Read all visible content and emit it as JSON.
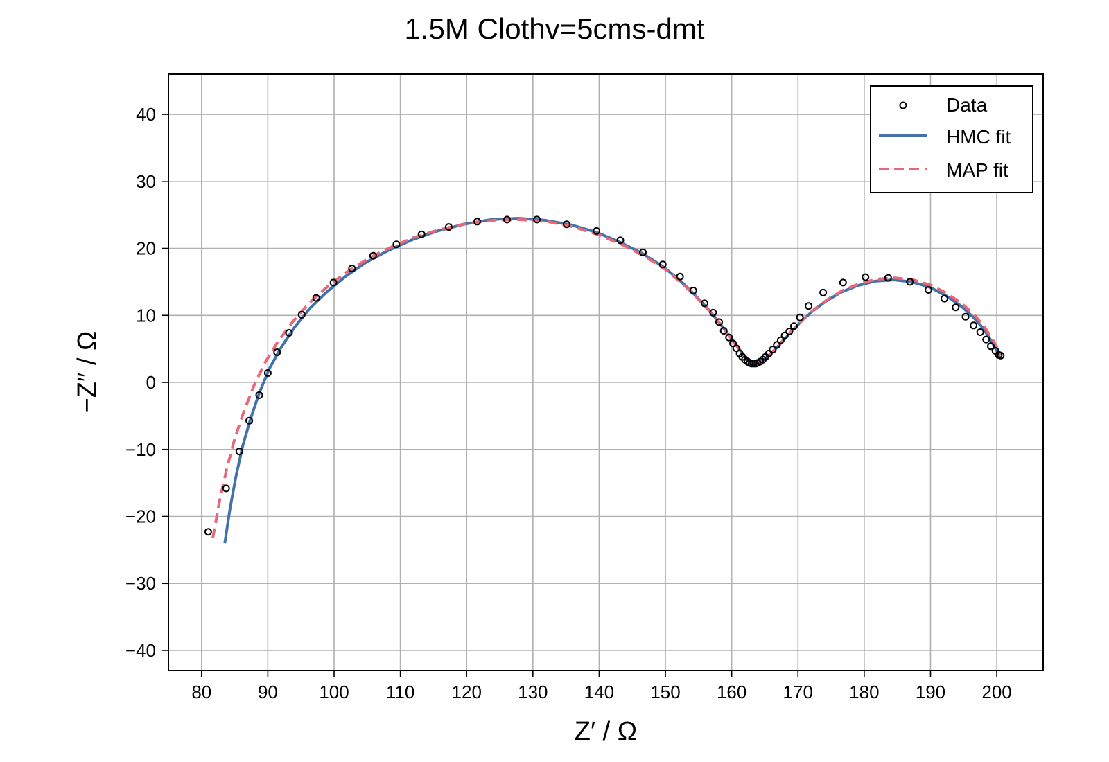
{
  "chart_data": {
    "type": "scatter",
    "title": "1.5M Clothv=5cms-dmt",
    "xlabel": "Z′ / Ω",
    "ylabel": "−Z″ / Ω",
    "xlim": [
      75,
      207
    ],
    "ylim": [
      -43,
      46
    ],
    "xticks": [
      80,
      90,
      100,
      110,
      120,
      130,
      140,
      150,
      160,
      170,
      180,
      190,
      200
    ],
    "yticks": [
      -40,
      -30,
      -20,
      -10,
      0,
      10,
      20,
      30,
      40
    ],
    "xtick_labels": [
      "80",
      "90",
      "100",
      "110",
      "120",
      "130",
      "140",
      "150",
      "160",
      "170",
      "180",
      "190",
      "200"
    ],
    "ytick_labels": [
      "−40",
      "−30",
      "−20",
      "−10",
      "0",
      "10",
      "20",
      "30",
      "40"
    ],
    "grid": true,
    "legend_position": "top-right",
    "series": [
      {
        "name": "Data",
        "kind": "scatter",
        "color": "#000000",
        "x": [
          81.0,
          83.7,
          85.7,
          87.2,
          88.7,
          90.0,
          91.4,
          93.2,
          95.1,
          97.3,
          99.9,
          102.7,
          105.9,
          109.4,
          113.2,
          117.3,
          121.6,
          126.1,
          130.6,
          135.1,
          139.6,
          143.2,
          146.6,
          149.6,
          152.2,
          154.2,
          155.9,
          157.2,
          158.1,
          158.8,
          159.6,
          160.2,
          160.7,
          161.2,
          161.6,
          162.0,
          162.4,
          162.7,
          163.0,
          163.3,
          163.6,
          163.9,
          164.3,
          164.7,
          165.1,
          165.6,
          166.2,
          166.8,
          167.4,
          168.0,
          168.7,
          169.4,
          170.3,
          171.6,
          173.8,
          176.8,
          180.2,
          183.6,
          186.9,
          189.7,
          192.1,
          193.8,
          195.3,
          196.5,
          197.5,
          198.4,
          199.1,
          199.8,
          200.3,
          200.6
        ],
        "y": [
          -22.3,
          -15.8,
          -10.3,
          -5.7,
          -1.9,
          1.4,
          4.5,
          7.4,
          10.1,
          12.6,
          14.9,
          17.0,
          18.9,
          20.6,
          22.1,
          23.2,
          24.0,
          24.3,
          24.3,
          23.6,
          22.6,
          21.2,
          19.4,
          17.6,
          15.8,
          13.7,
          11.8,
          10.4,
          9.0,
          7.7,
          6.7,
          5.8,
          5.1,
          4.3,
          3.8,
          3.4,
          3.1,
          2.9,
          2.8,
          2.8,
          2.8,
          2.9,
          3.1,
          3.4,
          3.8,
          4.3,
          4.9,
          5.6,
          6.3,
          7.0,
          7.6,
          8.4,
          9.7,
          11.4,
          13.4,
          14.9,
          15.7,
          15.6,
          15.0,
          13.8,
          12.5,
          11.2,
          9.8,
          8.5,
          7.5,
          6.4,
          5.4,
          4.7,
          4.1,
          4.0
        ]
      },
      {
        "name": "HMC fit",
        "kind": "line",
        "color": "#4472a8",
        "x": [
          83.5,
          84.3,
          85.2,
          86.2,
          87.4,
          88.7,
          90.2,
          92.0,
          94.0,
          96.3,
          98.9,
          101.7,
          104.8,
          108.2,
          111.8,
          115.6,
          119.6,
          123.7,
          127.8,
          131.8,
          135.8,
          139.6,
          143.2,
          146.6,
          149.6,
          152.2,
          154.4,
          156.3,
          157.9,
          159.3,
          160.5,
          161.5,
          162.3,
          163.0,
          163.6,
          164.3,
          165.1,
          166.0,
          167.0,
          168.1,
          169.3,
          170.7,
          172.3,
          174.2,
          176.4,
          178.9,
          181.6,
          184.4,
          187.2,
          189.9,
          192.4,
          194.6,
          196.5,
          198.0,
          199.1,
          199.9,
          200.4
        ],
        "y": [
          -24.0,
          -18.8,
          -14.0,
          -9.5,
          -5.4,
          -1.6,
          2.0,
          5.2,
          8.2,
          11.0,
          13.5,
          15.8,
          17.9,
          19.7,
          21.3,
          22.6,
          23.6,
          24.3,
          24.5,
          24.2,
          23.5,
          22.4,
          20.9,
          19.2,
          17.3,
          15.2,
          13.1,
          11.1,
          9.2,
          7.4,
          5.8,
          4.5,
          3.5,
          2.9,
          2.8,
          3.0,
          3.6,
          4.4,
          5.4,
          6.6,
          7.9,
          9.3,
          10.7,
          12.1,
          13.4,
          14.4,
          15.1,
          15.3,
          15.0,
          14.2,
          12.9,
          11.4,
          9.7,
          8.0,
          6.3,
          4.9,
          3.8
        ]
      },
      {
        "name": "MAP fit",
        "kind": "dashed-line",
        "color": "#e8687a",
        "x": [
          81.7,
          82.7,
          83.8,
          85.0,
          86.4,
          87.9,
          89.6,
          91.6,
          93.8,
          96.2,
          98.9,
          101.8,
          105.0,
          108.4,
          112.0,
          115.9,
          119.9,
          124.0,
          128.1,
          132.2,
          136.2,
          140.0,
          143.6,
          146.9,
          149.9,
          152.5,
          154.7,
          156.6,
          158.2,
          159.6,
          160.7,
          161.7,
          162.5,
          163.2,
          163.8,
          164.5,
          165.3,
          166.2,
          167.2,
          168.3,
          169.6,
          171.0,
          172.6,
          174.5,
          176.7,
          179.2,
          181.8,
          184.6,
          187.4,
          190.1,
          192.6,
          194.8,
          196.7,
          198.2,
          199.3,
          200.1,
          200.5
        ],
        "y": [
          -23.2,
          -17.8,
          -12.9,
          -8.4,
          -4.3,
          -0.5,
          3.0,
          6.2,
          9.1,
          11.8,
          14.2,
          16.4,
          18.4,
          20.1,
          21.6,
          22.8,
          23.7,
          24.2,
          24.3,
          24.0,
          23.2,
          22.0,
          20.5,
          18.8,
          16.9,
          14.8,
          12.7,
          10.7,
          8.8,
          7.0,
          5.5,
          4.3,
          3.4,
          2.9,
          2.8,
          3.1,
          3.7,
          4.6,
          5.7,
          6.9,
          8.2,
          9.6,
          11.0,
          12.4,
          13.7,
          14.7,
          15.4,
          15.6,
          15.3,
          14.5,
          13.2,
          11.7,
          10.0,
          8.2,
          6.5,
          5.1,
          4.0
        ]
      }
    ]
  }
}
